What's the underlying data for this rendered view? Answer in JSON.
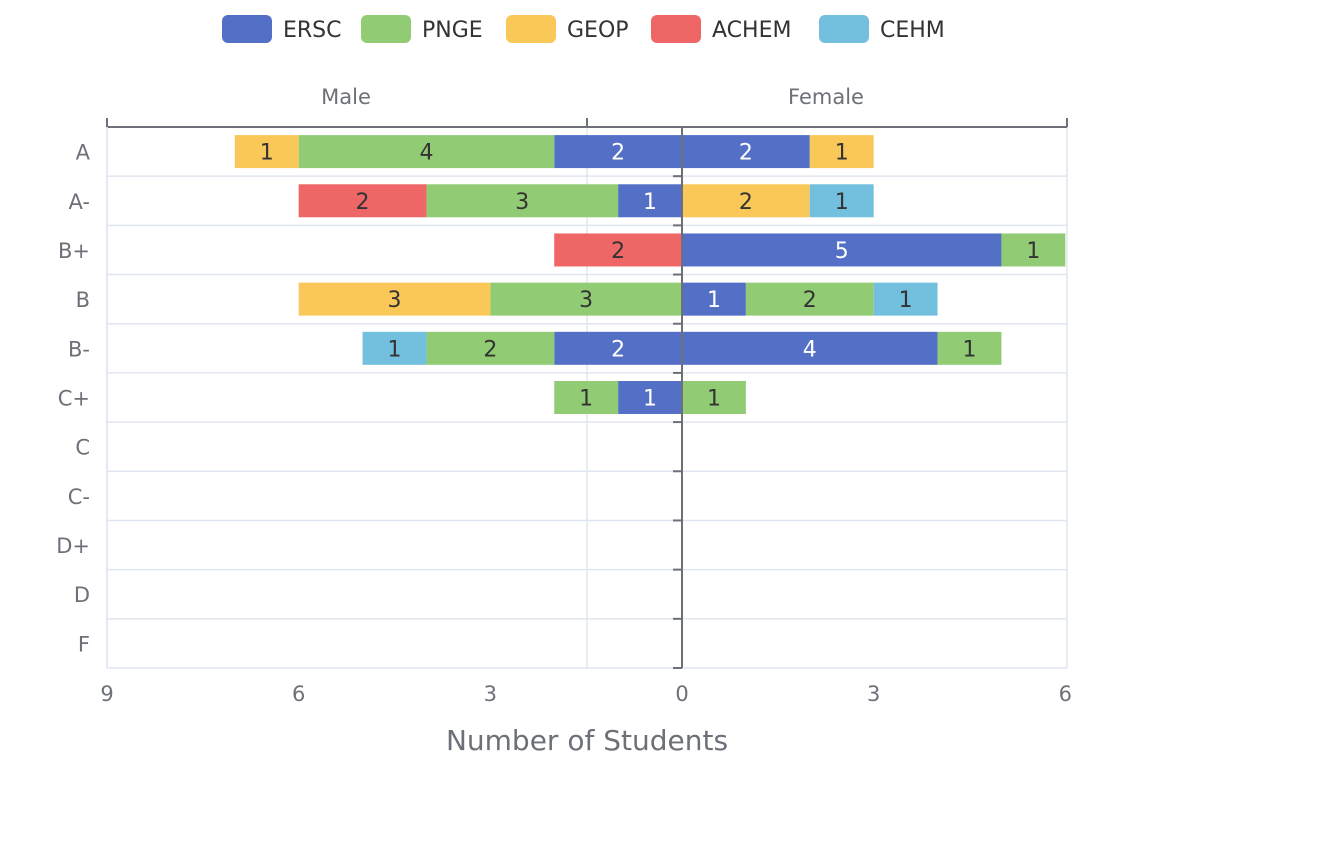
{
  "chart_data": {
    "type": "bar",
    "orientation": "horizontal",
    "stacked": true,
    "layout": "diverging",
    "categories": [
      "A",
      "A-",
      "B+",
      "B",
      "B-",
      "C+",
      "C",
      "C-",
      "D+",
      "D",
      "F"
    ],
    "sides": [
      {
        "name": "Male",
        "direction": "left",
        "xlim": [
          0,
          9
        ],
        "ticks": [
          0,
          3,
          6,
          9
        ]
      },
      {
        "name": "Female",
        "direction": "right",
        "xlim": [
          0,
          6
        ],
        "ticks": [
          0,
          3,
          6
        ]
      }
    ],
    "xlabel": "Number of Students",
    "legend_position": "top",
    "grid": true,
    "series": [
      {
        "name": "ERSC",
        "color": "#5470c6",
        "label_color": "#ffffff",
        "male": [
          2,
          1,
          0,
          0,
          2,
          1,
          0,
          0,
          0,
          0,
          0
        ],
        "female": [
          2,
          0,
          5,
          1,
          4,
          0,
          0,
          0,
          0,
          0,
          0
        ]
      },
      {
        "name": "PNGE",
        "color": "#91cc75",
        "label_color": "#333333",
        "male": [
          4,
          3,
          0,
          3,
          2,
          1,
          0,
          0,
          0,
          0,
          0
        ],
        "female": [
          0,
          0,
          1,
          2,
          1,
          1,
          0,
          0,
          0,
          0,
          0
        ]
      },
      {
        "name": "GEOP",
        "color": "#fac858",
        "label_color": "#333333",
        "male": [
          1,
          0,
          0,
          3,
          0,
          0,
          0,
          0,
          0,
          0,
          0
        ],
        "female": [
          1,
          2,
          0,
          0,
          0,
          0,
          0,
          0,
          0,
          0,
          0
        ]
      },
      {
        "name": "ACHEM",
        "color": "#ee6666",
        "label_color": "#333333",
        "male": [
          0,
          2,
          2,
          0,
          0,
          0,
          0,
          0,
          0,
          0,
          0
        ],
        "female": [
          0,
          0,
          0,
          0,
          0,
          0,
          0,
          0,
          0,
          0,
          0
        ]
      },
      {
        "name": "CEHM",
        "color": "#73c0de",
        "label_color": "#333333",
        "male": [
          0,
          0,
          0,
          0,
          1,
          0,
          0,
          0,
          0,
          0,
          0
        ],
        "female": [
          0,
          1,
          0,
          1,
          0,
          0,
          0,
          0,
          0,
          0,
          0
        ]
      }
    ]
  }
}
